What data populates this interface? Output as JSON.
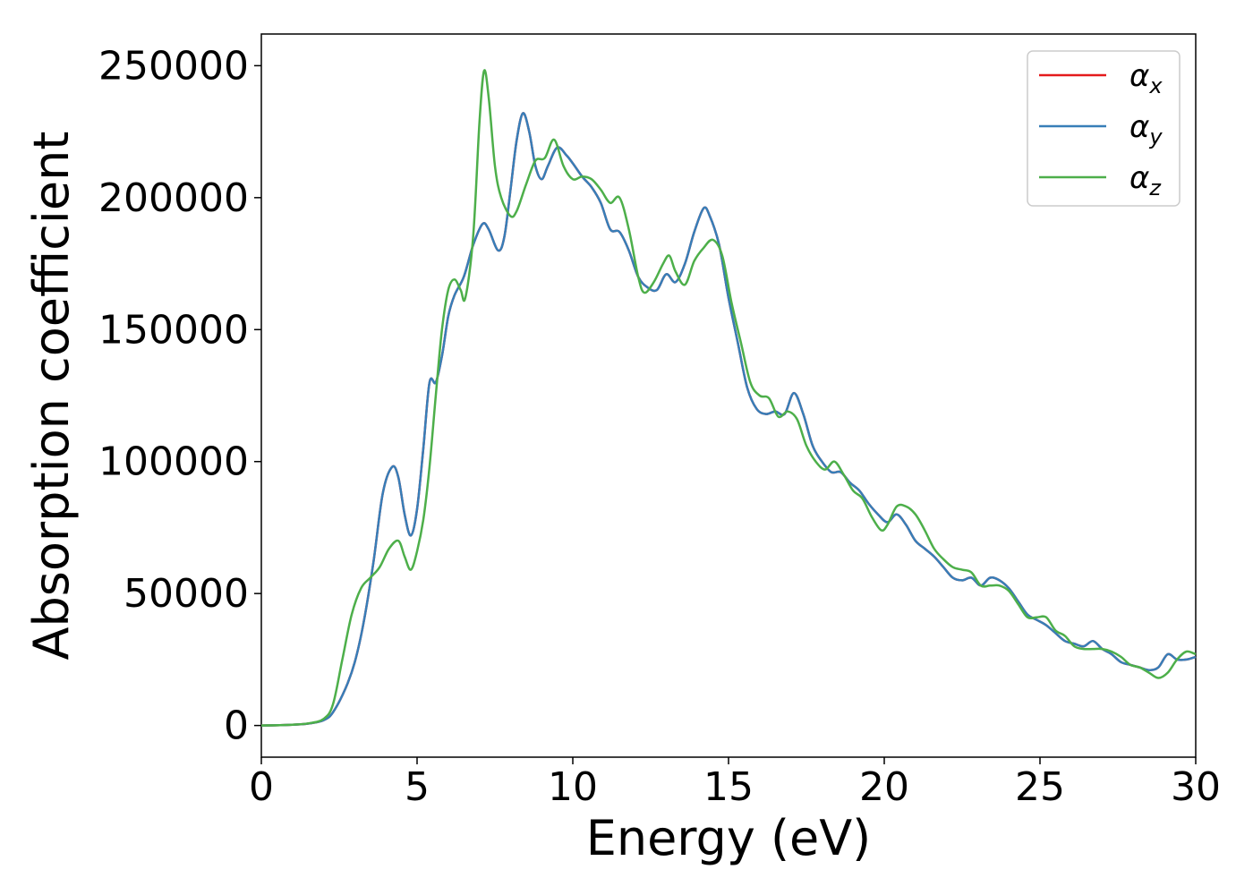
{
  "chart_data": {
    "type": "line",
    "xlabel": "Energy (eV)",
    "ylabel": "Absorption coefficient",
    "xlim": [
      0,
      30
    ],
    "ylim": [
      -12000,
      262000
    ],
    "xticks": [
      0,
      5,
      10,
      15,
      20,
      25,
      30
    ],
    "yticks": [
      0,
      50000,
      100000,
      150000,
      200000,
      250000
    ],
    "grid": false,
    "legend_position": "top-right",
    "series": [
      {
        "name": "α_x",
        "legend_symbol": "α",
        "legend_subscript": "x",
        "color": "#e41a1c",
        "points": [
          [
            0,
            0
          ],
          [
            1,
            300
          ],
          [
            1.5,
            700
          ],
          [
            2,
            2000
          ],
          [
            2.3,
            5000
          ],
          [
            2.7,
            14000
          ],
          [
            3,
            24000
          ],
          [
            3.3,
            40000
          ],
          [
            3.6,
            62000
          ],
          [
            3.9,
            88000
          ],
          [
            4.2,
            98000
          ],
          [
            4.4,
            94000
          ],
          [
            4.6,
            80000
          ],
          [
            4.8,
            72000
          ],
          [
            5,
            82000
          ],
          [
            5.2,
            105000
          ],
          [
            5.4,
            130000
          ],
          [
            5.6,
            130000
          ],
          [
            5.8,
            140000
          ],
          [
            6,
            155000
          ],
          [
            6.2,
            163000
          ],
          [
            6.5,
            170000
          ],
          [
            6.8,
            182000
          ],
          [
            7.1,
            190000
          ],
          [
            7.3,
            188000
          ],
          [
            7.6,
            180000
          ],
          [
            7.8,
            185000
          ],
          [
            8,
            203000
          ],
          [
            8.2,
            222000
          ],
          [
            8.4,
            232000
          ],
          [
            8.6,
            225000
          ],
          [
            8.8,
            212000
          ],
          [
            9,
            207000
          ],
          [
            9.2,
            212000
          ],
          [
            9.5,
            219000
          ],
          [
            9.8,
            216000
          ],
          [
            10,
            213000
          ],
          [
            10.3,
            208000
          ],
          [
            10.6,
            204000
          ],
          [
            10.9,
            198000
          ],
          [
            11.2,
            188000
          ],
          [
            11.5,
            187000
          ],
          [
            11.8,
            180000
          ],
          [
            12.1,
            170000
          ],
          [
            12.4,
            166000
          ],
          [
            12.7,
            165000
          ],
          [
            13,
            171000
          ],
          [
            13.3,
            168000
          ],
          [
            13.6,
            175000
          ],
          [
            13.9,
            187000
          ],
          [
            14.2,
            196000
          ],
          [
            14.4,
            193000
          ],
          [
            14.7,
            182000
          ],
          [
            15,
            162000
          ],
          [
            15.3,
            145000
          ],
          [
            15.6,
            128000
          ],
          [
            15.9,
            120000
          ],
          [
            16.2,
            118000
          ],
          [
            16.5,
            119000
          ],
          [
            16.8,
            118000
          ],
          [
            17.1,
            126000
          ],
          [
            17.4,
            118000
          ],
          [
            17.7,
            106000
          ],
          [
            18,
            100000
          ],
          [
            18.3,
            96000
          ],
          [
            18.6,
            96000
          ],
          [
            18.9,
            92000
          ],
          [
            19.2,
            89000
          ],
          [
            19.5,
            84000
          ],
          [
            19.8,
            80000
          ],
          [
            20.1,
            77000
          ],
          [
            20.4,
            80000
          ],
          [
            20.7,
            76000
          ],
          [
            21,
            70000
          ],
          [
            21.3,
            67000
          ],
          [
            21.6,
            64000
          ],
          [
            21.9,
            60000
          ],
          [
            22.2,
            56000
          ],
          [
            22.5,
            55000
          ],
          [
            22.8,
            56000
          ],
          [
            23.1,
            53000
          ],
          [
            23.4,
            56000
          ],
          [
            23.7,
            55000
          ],
          [
            24,
            52000
          ],
          [
            24.3,
            47000
          ],
          [
            24.6,
            42000
          ],
          [
            24.9,
            40000
          ],
          [
            25.2,
            38000
          ],
          [
            25.5,
            35000
          ],
          [
            25.8,
            32000
          ],
          [
            26.1,
            31000
          ],
          [
            26.4,
            30000
          ],
          [
            26.7,
            32000
          ],
          [
            27,
            29000
          ],
          [
            27.3,
            27000
          ],
          [
            27.6,
            24000
          ],
          [
            27.9,
            23000
          ],
          [
            28.2,
            22000
          ],
          [
            28.5,
            21000
          ],
          [
            28.8,
            22000
          ],
          [
            29.1,
            27000
          ],
          [
            29.4,
            25000
          ],
          [
            29.7,
            25000
          ],
          [
            30,
            26000
          ]
        ]
      },
      {
        "name": "α_y",
        "legend_symbol": "α",
        "legend_subscript": "y",
        "color": "#377eb8",
        "points": [
          [
            0,
            0
          ],
          [
            1,
            300
          ],
          [
            1.5,
            700
          ],
          [
            2,
            2000
          ],
          [
            2.3,
            5000
          ],
          [
            2.7,
            14000
          ],
          [
            3,
            24000
          ],
          [
            3.3,
            40000
          ],
          [
            3.6,
            62000
          ],
          [
            3.9,
            88000
          ],
          [
            4.2,
            98000
          ],
          [
            4.4,
            94000
          ],
          [
            4.6,
            80000
          ],
          [
            4.8,
            72000
          ],
          [
            5,
            82000
          ],
          [
            5.2,
            105000
          ],
          [
            5.4,
            130000
          ],
          [
            5.6,
            130000
          ],
          [
            5.8,
            140000
          ],
          [
            6,
            155000
          ],
          [
            6.2,
            163000
          ],
          [
            6.5,
            170000
          ],
          [
            6.8,
            182000
          ],
          [
            7.1,
            190000
          ],
          [
            7.3,
            188000
          ],
          [
            7.6,
            180000
          ],
          [
            7.8,
            185000
          ],
          [
            8,
            203000
          ],
          [
            8.2,
            222000
          ],
          [
            8.4,
            232000
          ],
          [
            8.6,
            225000
          ],
          [
            8.8,
            212000
          ],
          [
            9,
            207000
          ],
          [
            9.2,
            212000
          ],
          [
            9.5,
            219000
          ],
          [
            9.8,
            216000
          ],
          [
            10,
            213000
          ],
          [
            10.3,
            208000
          ],
          [
            10.6,
            204000
          ],
          [
            10.9,
            198000
          ],
          [
            11.2,
            188000
          ],
          [
            11.5,
            187000
          ],
          [
            11.8,
            180000
          ],
          [
            12.1,
            170000
          ],
          [
            12.4,
            166000
          ],
          [
            12.7,
            165000
          ],
          [
            13,
            171000
          ],
          [
            13.3,
            168000
          ],
          [
            13.6,
            175000
          ],
          [
            13.9,
            187000
          ],
          [
            14.2,
            196000
          ],
          [
            14.4,
            193000
          ],
          [
            14.7,
            182000
          ],
          [
            15,
            162000
          ],
          [
            15.3,
            145000
          ],
          [
            15.6,
            128000
          ],
          [
            15.9,
            120000
          ],
          [
            16.2,
            118000
          ],
          [
            16.5,
            119000
          ],
          [
            16.8,
            118000
          ],
          [
            17.1,
            126000
          ],
          [
            17.4,
            118000
          ],
          [
            17.7,
            106000
          ],
          [
            18,
            100000
          ],
          [
            18.3,
            96000
          ],
          [
            18.6,
            96000
          ],
          [
            18.9,
            92000
          ],
          [
            19.2,
            89000
          ],
          [
            19.5,
            84000
          ],
          [
            19.8,
            80000
          ],
          [
            20.1,
            77000
          ],
          [
            20.4,
            80000
          ],
          [
            20.7,
            76000
          ],
          [
            21,
            70000
          ],
          [
            21.3,
            67000
          ],
          [
            21.6,
            64000
          ],
          [
            21.9,
            60000
          ],
          [
            22.2,
            56000
          ],
          [
            22.5,
            55000
          ],
          [
            22.8,
            56000
          ],
          [
            23.1,
            53000
          ],
          [
            23.4,
            56000
          ],
          [
            23.7,
            55000
          ],
          [
            24,
            52000
          ],
          [
            24.3,
            47000
          ],
          [
            24.6,
            42000
          ],
          [
            24.9,
            40000
          ],
          [
            25.2,
            38000
          ],
          [
            25.5,
            35000
          ],
          [
            25.8,
            32000
          ],
          [
            26.1,
            31000
          ],
          [
            26.4,
            30000
          ],
          [
            26.7,
            32000
          ],
          [
            27,
            29000
          ],
          [
            27.3,
            27000
          ],
          [
            27.6,
            24000
          ],
          [
            27.9,
            23000
          ],
          [
            28.2,
            22000
          ],
          [
            28.5,
            21000
          ],
          [
            28.8,
            22000
          ],
          [
            29.1,
            27000
          ],
          [
            29.4,
            25000
          ],
          [
            29.7,
            25000
          ],
          [
            30,
            26000
          ]
        ]
      },
      {
        "name": "α_z",
        "legend_symbol": "α",
        "legend_subscript": "z",
        "color": "#4daf4a",
        "points": [
          [
            0,
            0
          ],
          [
            1,
            300
          ],
          [
            1.5,
            800
          ],
          [
            2,
            2500
          ],
          [
            2.3,
            8000
          ],
          [
            2.6,
            25000
          ],
          [
            2.9,
            42000
          ],
          [
            3.2,
            52000
          ],
          [
            3.5,
            56000
          ],
          [
            3.8,
            60000
          ],
          [
            4.1,
            67000
          ],
          [
            4.4,
            70000
          ],
          [
            4.6,
            64000
          ],
          [
            4.8,
            59000
          ],
          [
            5,
            66000
          ],
          [
            5.2,
            78000
          ],
          [
            5.4,
            98000
          ],
          [
            5.6,
            125000
          ],
          [
            5.8,
            150000
          ],
          [
            6,
            165000
          ],
          [
            6.2,
            169000
          ],
          [
            6.4,
            165000
          ],
          [
            6.55,
            162000
          ],
          [
            6.8,
            185000
          ],
          [
            7,
            228000
          ],
          [
            7.15,
            248000
          ],
          [
            7.3,
            238000
          ],
          [
            7.5,
            212000
          ],
          [
            7.7,
            200000
          ],
          [
            8,
            193000
          ],
          [
            8.2,
            195000
          ],
          [
            8.5,
            205000
          ],
          [
            8.8,
            214000
          ],
          [
            9.1,
            215000
          ],
          [
            9.4,
            222000
          ],
          [
            9.7,
            212000
          ],
          [
            10,
            207000
          ],
          [
            10.3,
            208000
          ],
          [
            10.6,
            207000
          ],
          [
            10.9,
            203000
          ],
          [
            11.2,
            198000
          ],
          [
            11.5,
            200000
          ],
          [
            11.8,
            188000
          ],
          [
            12.1,
            170000
          ],
          [
            12.3,
            164000
          ],
          [
            12.6,
            168000
          ],
          [
            12.9,
            175000
          ],
          [
            13.1,
            178000
          ],
          [
            13.3,
            172000
          ],
          [
            13.6,
            167000
          ],
          [
            13.9,
            176000
          ],
          [
            14.2,
            181000
          ],
          [
            14.5,
            184000
          ],
          [
            14.8,
            178000
          ],
          [
            15.1,
            160000
          ],
          [
            15.4,
            145000
          ],
          [
            15.7,
            130000
          ],
          [
            16,
            125000
          ],
          [
            16.3,
            124000
          ],
          [
            16.6,
            117000
          ],
          [
            16.9,
            119000
          ],
          [
            17.2,
            116000
          ],
          [
            17.5,
            106000
          ],
          [
            17.8,
            100000
          ],
          [
            18.1,
            97000
          ],
          [
            18.4,
            100000
          ],
          [
            18.7,
            95000
          ],
          [
            19,
            89000
          ],
          [
            19.3,
            86000
          ],
          [
            19.6,
            79000
          ],
          [
            19.9,
            74000
          ],
          [
            20.1,
            76000
          ],
          [
            20.4,
            83000
          ],
          [
            20.7,
            83000
          ],
          [
            21,
            80000
          ],
          [
            21.3,
            74000
          ],
          [
            21.6,
            67000
          ],
          [
            21.9,
            63000
          ],
          [
            22.2,
            60000
          ],
          [
            22.5,
            59000
          ],
          [
            22.8,
            58000
          ],
          [
            23.1,
            53000
          ],
          [
            23.4,
            53000
          ],
          [
            23.7,
            53000
          ],
          [
            24,
            51000
          ],
          [
            24.3,
            46000
          ],
          [
            24.6,
            41000
          ],
          [
            24.9,
            41000
          ],
          [
            25.2,
            41000
          ],
          [
            25.5,
            36000
          ],
          [
            25.8,
            34000
          ],
          [
            26.1,
            30000
          ],
          [
            26.4,
            29000
          ],
          [
            26.7,
            29000
          ],
          [
            27,
            29000
          ],
          [
            27.3,
            28000
          ],
          [
            27.6,
            26000
          ],
          [
            27.9,
            23000
          ],
          [
            28.2,
            22000
          ],
          [
            28.5,
            20000
          ],
          [
            28.8,
            18000
          ],
          [
            29.1,
            20000
          ],
          [
            29.4,
            25000
          ],
          [
            29.7,
            28000
          ],
          [
            30,
            27000
          ]
        ]
      }
    ]
  }
}
